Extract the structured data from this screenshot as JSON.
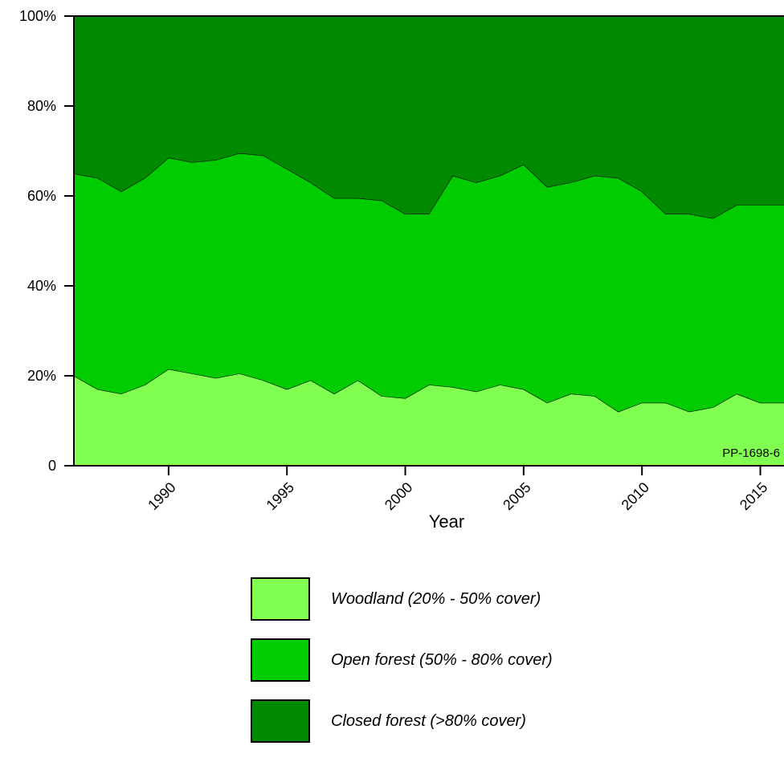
{
  "chart_data": {
    "type": "area",
    "stacked": true,
    "percent": true,
    "xlabel": "Year",
    "ylabel": "",
    "xlim": [
      1986,
      2016
    ],
    "ylim": [
      0,
      100
    ],
    "yticks": [
      {
        "value": 0,
        "label": "0"
      },
      {
        "value": 20,
        "label": "20%"
      },
      {
        "value": 40,
        "label": "40%"
      },
      {
        "value": 60,
        "label": "60%"
      },
      {
        "value": 80,
        "label": "80%"
      },
      {
        "value": 100,
        "label": "100%"
      }
    ],
    "xticks": [
      {
        "value": 1990,
        "label": "1990"
      },
      {
        "value": 1995,
        "label": "1995"
      },
      {
        "value": 2000,
        "label": "2000"
      },
      {
        "value": 2005,
        "label": "2005"
      },
      {
        "value": 2010,
        "label": "2010"
      },
      {
        "value": 2015,
        "label": "2015"
      }
    ],
    "annotation": "PP-1698-6",
    "x": [
      1986,
      1987,
      1988,
      1989,
      1990,
      1991,
      1992,
      1993,
      1994,
      1995,
      1996,
      1997,
      1998,
      1999,
      2000,
      2001,
      2002,
      2003,
      2004,
      2005,
      2006,
      2007,
      2008,
      2009,
      2010,
      2011,
      2012,
      2013,
      2014,
      2015,
      2016
    ],
    "series": [
      {
        "name": "Woodland (20% - 50% cover)",
        "color": "#80ff50",
        "values": [
          20,
          17,
          16,
          18,
          21.5,
          20.5,
          19.5,
          20.5,
          19,
          17,
          19,
          16,
          19,
          15.5,
          15,
          18,
          17.5,
          16.5,
          18,
          17,
          14,
          16,
          15.5,
          12,
          14,
          14,
          12,
          13,
          16,
          14,
          14
        ]
      },
      {
        "name": "Open forest (50% - 80% cover)",
        "color": "#00cc00",
        "values": [
          45,
          47,
          45,
          46,
          47,
          47,
          48.5,
          49,
          50,
          49,
          44,
          43.5,
          40.5,
          43.5,
          41,
          38,
          47,
          46.5,
          46.5,
          50,
          48,
          47,
          49,
          52,
          47,
          42,
          44,
          42,
          42,
          44,
          44
        ]
      },
      {
        "name": "Closed forest (>80% cover)",
        "color": "#008a00",
        "values": [
          35,
          36,
          39,
          36,
          31.5,
          32.5,
          32,
          30.5,
          31,
          34,
          37,
          40.5,
          40.5,
          41,
          44,
          44,
          35.5,
          37,
          35.5,
          33,
          38,
          37,
          35.5,
          36,
          39,
          44,
          44,
          45,
          42,
          42,
          42
        ]
      }
    ]
  }
}
